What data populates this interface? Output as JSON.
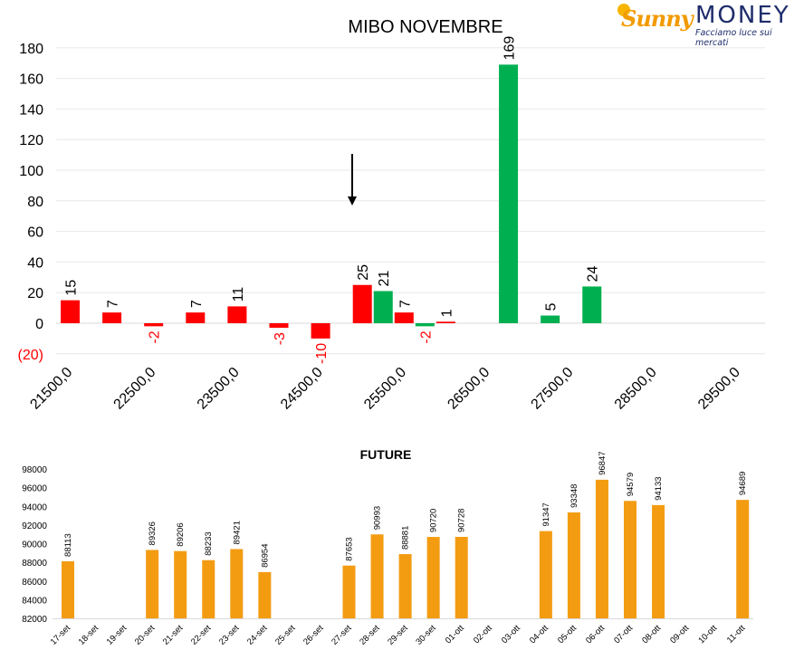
{
  "logo": {
    "brand_left": "Sunny",
    "brand_right": "MONEY",
    "tagline": "Facciamo luce sui mercati"
  },
  "chart_data": [
    {
      "type": "bar",
      "title": "MIBO NOVEMBRE",
      "xlabel": "",
      "ylabel": "",
      "ylim": [
        -20,
        180
      ],
      "yticks": [
        "(20)",
        "0",
        "20",
        "40",
        "60",
        "80",
        "100",
        "120",
        "140",
        "160",
        "180"
      ],
      "xticks": [
        "21500,0",
        "22500,0",
        "23500,0",
        "24500,0",
        "25500,0",
        "26500,0",
        "27500,0",
        "28500,0",
        "29500,0"
      ],
      "grid": true,
      "legend": "none",
      "colors": {
        "negative": "#ff0000",
        "positive": "#00b050",
        "label_negative": "#ff0000",
        "label_default": "#000000"
      },
      "annotation": "down-arrow pointing to current level",
      "series": [
        {
          "color": "red",
          "x": [
            21500,
            22000,
            22500,
            23000,
            23500,
            24000,
            24500,
            25000,
            25500,
            26000
          ],
          "values": [
            15,
            7,
            -2,
            7,
            11,
            -3,
            -10,
            25,
            7,
            1
          ]
        },
        {
          "color": "green",
          "x": [
            25250,
            25750,
            26750,
            27250,
            27750
          ],
          "values": [
            21,
            -2,
            169,
            5,
            24
          ]
        }
      ]
    },
    {
      "type": "bar",
      "title": "FUTURE",
      "xlabel": "",
      "ylabel": "",
      "ylim": [
        82000,
        98000
      ],
      "yticks": [
        "82000",
        "84000",
        "86000",
        "88000",
        "90000",
        "92000",
        "94000",
        "96000",
        "98000"
      ],
      "grid": false,
      "legend": "none",
      "color": "#f39c12",
      "categories": [
        "17-set",
        "18-set",
        "19-set",
        "20-set",
        "21-set",
        "22-set",
        "23-set",
        "24-set",
        "25-set",
        "26-set",
        "27-set",
        "28-set",
        "29-set",
        "30-set",
        "01-ott",
        "02-ott",
        "03-ott",
        "04-ott",
        "05-ott",
        "06-ott",
        "07-ott",
        "08-ott",
        "09-ott",
        "10-ott",
        "11-ott"
      ],
      "values": [
        88113,
        null,
        null,
        89326,
        89206,
        88233,
        89421,
        86954,
        null,
        null,
        87653,
        90993,
        88881,
        90720,
        90728,
        null,
        null,
        91347,
        93348,
        96847,
        94579,
        94133,
        null,
        null,
        94689
      ]
    }
  ]
}
